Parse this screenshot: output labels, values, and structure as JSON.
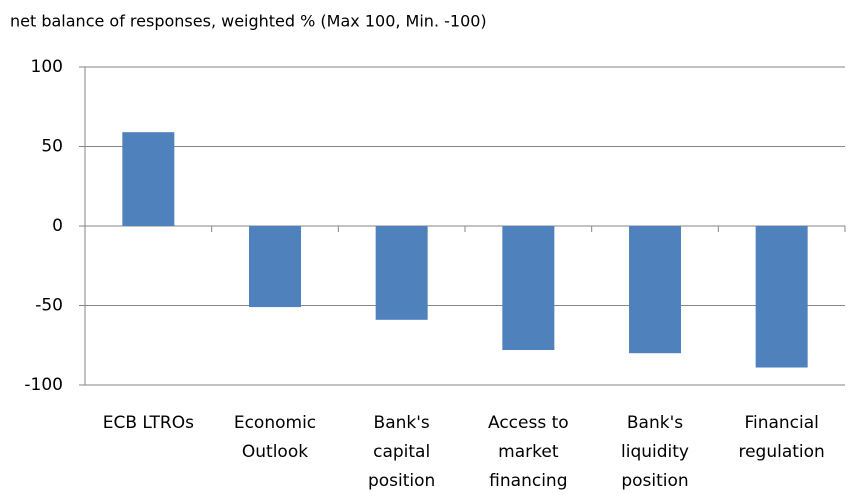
{
  "chart_data": {
    "type": "bar",
    "title": "net balance of responses, weighted % (Max 100, Min. -100)",
    "categories": [
      "ECB LTROs",
      "Economic\nOutlook",
      "Bank's\ncapital\nposition",
      "Access to\nmarket\nfinancing",
      "Bank's\nliquidity\nposition",
      "Financial\nregulation"
    ],
    "values": [
      59,
      -51,
      -59,
      -78,
      -80,
      -89
    ],
    "color": "#4f81bd",
    "ylim": [
      -100,
      100
    ],
    "yticks": [
      -100,
      -50,
      0,
      50,
      100
    ],
    "grid": true
  }
}
